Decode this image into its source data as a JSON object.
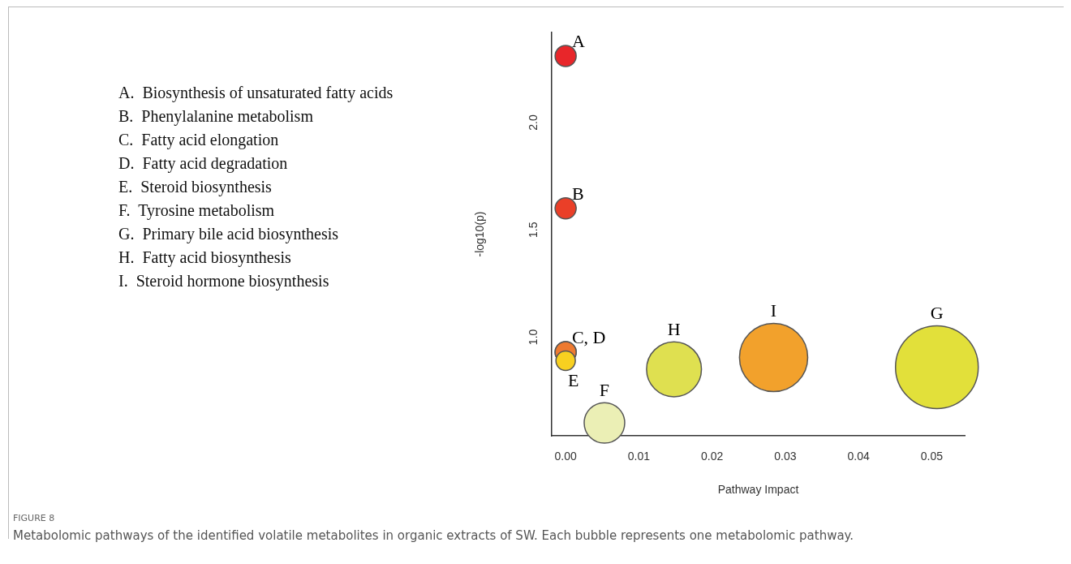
{
  "chart_data": {
    "type": "bubble",
    "title": "FIGURE 8",
    "subtitle": "Metabolomic pathways of the identified volatile metabolites in organic extracts of SW. Each bubble represents one metabolomic pathway.",
    "xlabel": "Pathway Impact",
    "ylabel": "-log10(p)",
    "x": [
      0,
      0,
      0,
      0,
      0,
      0.0053,
      0.0148,
      0.0284,
      0.0507
    ],
    "values": [
      2.31,
      1.6,
      0.93,
      0.93,
      0.89,
      0.6,
      0.85,
      0.905,
      0.86
    ],
    "sizes": [
      0.065,
      0.065,
      0.065,
      0.065,
      0.055,
      0.24,
      0.44,
      0.68,
      1
    ],
    "colors": [
      "#e8262a",
      "#ea3f28",
      "#ee7a30",
      "#ee7a30",
      "#f8d020",
      "#ebefb5",
      "#dfe050",
      "#f2a12c",
      "#e2e03a"
    ],
    "xlim": [
      -0.0019,
      0.0545
    ],
    "xticks": [
      {
        "value": 0,
        "label": "0.00"
      },
      {
        "value": 0.01,
        "label": "0.01"
      },
      {
        "value": 0.02,
        "label": "0.02"
      },
      {
        "value": 0.03,
        "label": "0.03"
      },
      {
        "value": 0.04,
        "label": "0.04"
      },
      {
        "value": 0.05,
        "label": "0.05"
      }
    ],
    "ylim": [
      0.54,
      2.42
    ],
    "yticks": [
      {
        "value": 1,
        "label": "1.0"
      },
      {
        "value": 1.5,
        "label": "1.5"
      },
      {
        "value": 2,
        "label": "2.0"
      }
    ],
    "grid": false,
    "legend": false,
    "annotations": [
      "A.  Biosynthesis of unsaturated fatty acids",
      "B.  Phenylalanine metabolism",
      "C.  Fatty acid elongation",
      "D.  Fatty acid degradation",
      "E.  Steroid biosynthesis",
      "F.  Tyrosine metabolism",
      "G.  Primary bile acid biosynthesis",
      "H.  Fatty acid biosynthesis",
      "I.  Steroid hormone biosynthesis",
      {
        "text": "A",
        "x": 0,
        "y": 2.31
      },
      {
        "text": "B",
        "x": 0,
        "y": 1.6
      },
      {
        "text": "C, D",
        "x": 0,
        "y": 0.93
      },
      {
        "text": "E",
        "x": 0,
        "y": 0.89
      },
      {
        "text": "F",
        "x": 0.0053,
        "y": 0.6
      },
      {
        "text": "H",
        "x": 0.0148,
        "y": 0.85
      },
      {
        "text": "I",
        "x": 0.0284,
        "y": 0.905
      },
      {
        "text": "G",
        "x": 0.0507,
        "y": 0.86
      }
    ]
  }
}
